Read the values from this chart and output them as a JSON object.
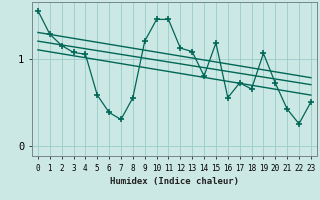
{
  "bg_color": "#cce8e4",
  "grid_color": "#99cccc",
  "line_color": "#006655",
  "xlabel": "Humidex (Indice chaleur)",
  "xlim": [
    -0.5,
    23.5
  ],
  "ylim": [
    -0.12,
    1.65
  ],
  "yticks": [
    0,
    1
  ],
  "xticks": [
    0,
    1,
    2,
    3,
    4,
    5,
    6,
    7,
    8,
    9,
    10,
    11,
    12,
    13,
    14,
    15,
    16,
    17,
    18,
    19,
    20,
    21,
    22,
    23
  ],
  "jagged_x": [
    0,
    1,
    2,
    3,
    4,
    5,
    6,
    7,
    8,
    9,
    10,
    11,
    12,
    13,
    14,
    15,
    16,
    17,
    18,
    19,
    20,
    21,
    22,
    23
  ],
  "jagged_y": [
    1.55,
    1.28,
    1.15,
    1.07,
    1.05,
    0.58,
    0.38,
    0.3,
    0.55,
    1.2,
    1.45,
    1.45,
    1.12,
    1.08,
    0.8,
    1.18,
    0.55,
    0.72,
    0.65,
    1.06,
    0.72,
    0.42,
    0.25,
    0.5
  ],
  "line1_x": [
    0,
    23
  ],
  "line1_y": [
    1.3,
    0.78
  ],
  "line2_x": [
    0,
    23
  ],
  "line2_y": [
    1.2,
    0.7
  ],
  "line3_x": [
    0,
    23
  ],
  "line3_y": [
    1.1,
    0.58
  ]
}
